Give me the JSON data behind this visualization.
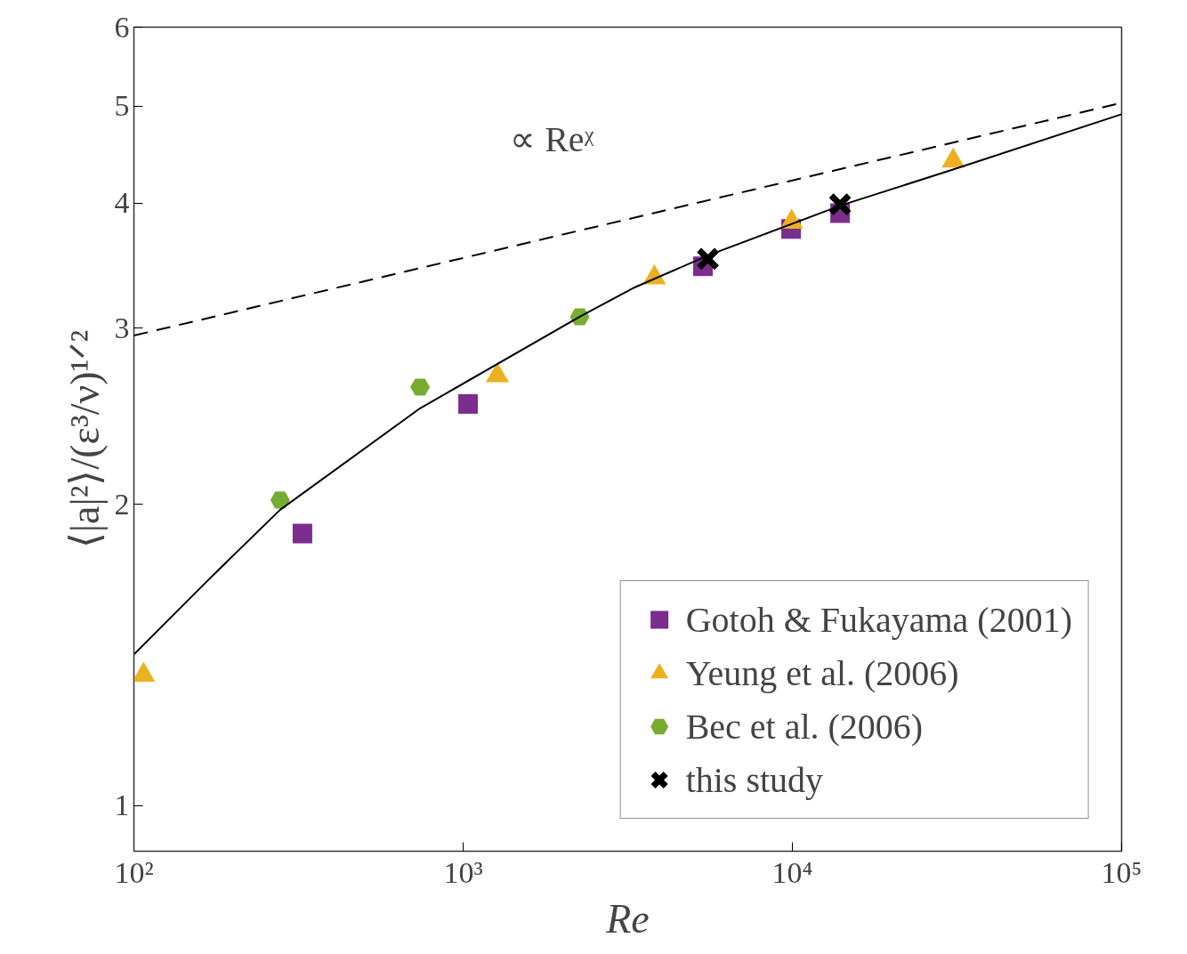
{
  "chart_data": {
    "type": "scatter",
    "xlabel": "Re",
    "ylabel": "⟨|a|²⟩/(ε³/ν)¹ᐟ²",
    "log": "xy",
    "xlim": [
      100,
      100000
    ],
    "ylim": [
      0.9,
      6
    ],
    "xticks": [
      {
        "value": 100,
        "label": "10²"
      },
      {
        "value": 1000,
        "label": "10³"
      },
      {
        "value": 10000,
        "label": "10⁴"
      },
      {
        "value": 100000,
        "label": "10⁵"
      }
    ],
    "yticks": [
      1,
      2,
      3,
      4,
      5,
      6
    ],
    "grid": false,
    "legend": "bottom right",
    "annotations": [
      "∝ Reᵡ"
    ],
    "series": [
      {
        "name": "Gotoh & Fukayama (2001)",
        "color": "#7b2d8e",
        "marker": "square",
        "x": [
          325,
          1035,
          5350,
          9910,
          13960
        ],
        "values": [
          1.87,
          2.52,
          3.46,
          3.77,
          3.91
        ]
      },
      {
        "name": "Yeung et al. (2006)",
        "color": "#edb120",
        "marker": "triangle",
        "x": [
          107,
          1270,
          3810,
          9950,
          30800
        ],
        "values": [
          1.35,
          2.69,
          3.37,
          3.83,
          4.41
        ]
      },
      {
        "name": "Bec et al. (2006)",
        "color": "#77ac30",
        "marker": "circle",
        "x": [
          278,
          740,
          2260
        ],
        "values": [
          2.02,
          2.62,
          3.08
        ]
      },
      {
        "name": "this study",
        "color": "#000000",
        "marker": "cross",
        "x": [
          5540,
          13960
        ],
        "values": [
          3.52,
          3.99
        ]
      },
      {
        "type": "line",
        "color": "#000000",
        "line_style": "dashed",
        "marker": "none",
        "x": [
          100,
          100000
        ],
        "values": [
          2.95,
          5.04
        ]
      },
      {
        "type": "line",
        "color": "#000000",
        "line_style": "solid",
        "marker": "none",
        "x": [
          100,
          168,
          278,
          740,
          2260,
          3280,
          5580,
          14030,
          31200,
          100000
        ],
        "values": [
          1.416,
          1.68,
          1.975,
          2.495,
          3.08,
          3.29,
          3.55,
          3.98,
          4.33,
          4.91
        ]
      }
    ]
  }
}
